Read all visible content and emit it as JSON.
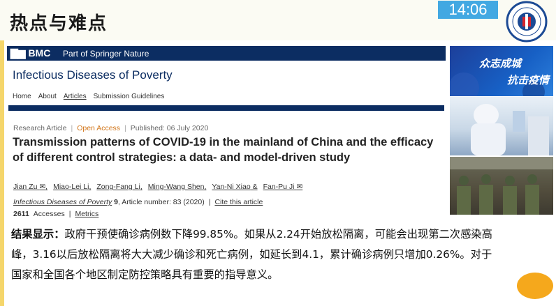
{
  "slide": {
    "title": "热点与难点",
    "clock": "14:06"
  },
  "article": {
    "brand": "BMC",
    "tagline": "Part of Springer Nature",
    "journal": "Infectious Diseases of Poverty",
    "nav": [
      "Home",
      "About",
      "Articles",
      "Submission Guidelines"
    ],
    "meta": {
      "type": "Research Article",
      "access": "Open Access",
      "published": "Published: 06 July 2020"
    },
    "headline": "Transmission patterns of COVID-19 in the mainland of China and the efficacy of different control strategies: a data- and model-driven study",
    "authors": [
      "Jian Zu",
      "Miao-Lei Li",
      "Zong-Fang Li",
      "Ming-Wang Shen",
      "Yan-Ni Xiao",
      "Fan-Pu Ji"
    ],
    "citation": {
      "journal": "Infectious Diseases of Poverty",
      "volume": "9",
      "article": ", Article number: 83 (2020)",
      "cite_link": "Cite this article"
    },
    "accesses": {
      "count": "2611",
      "label": "Accesses",
      "metrics": "Metrics"
    }
  },
  "side_images": {
    "banner_line1": "众志成城",
    "banner_line2": "抗击疫情"
  },
  "body": {
    "lead": "结果显示：",
    "text": "政府干预使确诊病例数下降99.85%。如果从2.24开始放松隔离，可能会出现第二次感染高峰，3.16以后放松隔离将大大减少确诊和死亡病例，如延长到4.1，累计确诊病例只增加0.26%。对于国家和全国各个地区制定防控策略具有重要的指导意义。"
  }
}
